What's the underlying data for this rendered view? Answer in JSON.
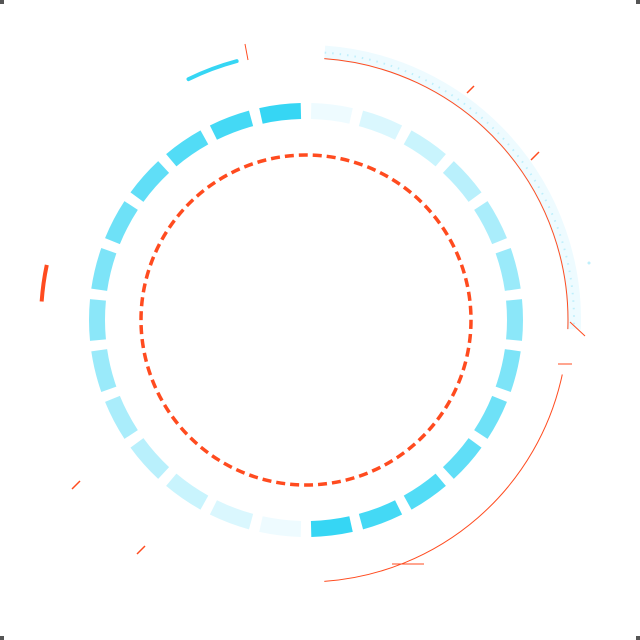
{
  "hud": {
    "palette": {
      "cyan": "#36d6f4",
      "cyan_light": "#bfeffb",
      "cyan_faint": "#eefbff",
      "orange": "#ff4b1f",
      "corner_marker": "#555555"
    },
    "segmented_ring": {
      "segment_count": 26,
      "fade_direction": "clockwise"
    },
    "dashed_ring": {
      "style": "dashed",
      "color": "orange"
    },
    "outer_track": {
      "style": "dotted band with thin outline"
    }
  }
}
